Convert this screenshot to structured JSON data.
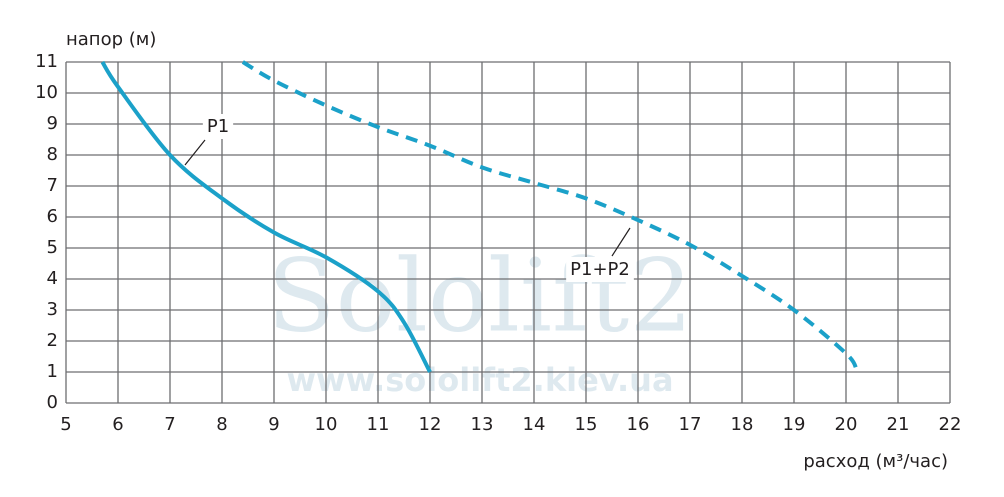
{
  "chart_data": {
    "type": "line",
    "y_label": "напор (м)",
    "x_label": "расход (м³/час)",
    "watermark": [
      "Sololift2",
      "www.sololift2.kiev.ua"
    ],
    "xlim": [
      5,
      22
    ],
    "xticks": [
      5,
      6,
      7,
      8,
      9,
      10,
      11,
      12,
      13,
      14,
      15,
      16,
      17,
      18,
      19,
      20,
      21,
      22
    ],
    "ylim": [
      0,
      11
    ],
    "yticks": [
      0,
      1,
      2,
      3,
      4,
      5,
      6,
      7,
      8,
      9,
      10,
      11
    ],
    "grid": true,
    "series": [
      {
        "name": "P1",
        "color": "#1ba1c9",
        "line_style": "solid",
        "x": [
          5.7,
          6,
          7,
          8,
          9,
          10,
          11,
          11.5,
          12
        ],
        "values": [
          11,
          10.2,
          8,
          6.6,
          5.5,
          4.7,
          3.6,
          2.6,
          1
        ]
      },
      {
        "name": "P1+P2",
        "color": "#1ba1c9",
        "line_style": "dashed",
        "x": [
          8.4,
          9,
          10,
          11,
          12,
          13,
          14,
          15,
          16,
          17,
          18,
          19,
          20,
          20.2
        ],
        "values": [
          11,
          10.4,
          9.6,
          8.9,
          8.3,
          7.6,
          7.1,
          6.6,
          5.9,
          5.1,
          4.1,
          3,
          1.6,
          1.1
        ]
      }
    ]
  }
}
